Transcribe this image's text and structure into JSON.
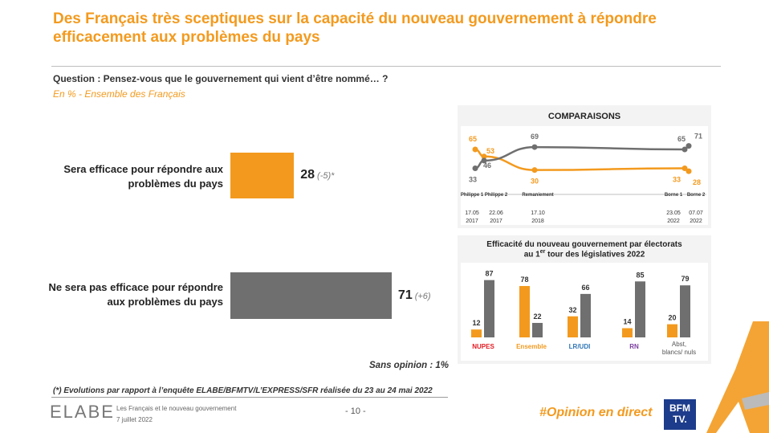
{
  "title": "Des Français très sceptiques sur la capacité du nouveau gouvernement à répondre efficacement aux problèmes du pays",
  "question": "Question : Pensez-vous que le gouvernement qui vient d’être nommé… ?",
  "subquestion": "En % - Ensemble des Français",
  "no_opinion": "Sans opinion : 1%",
  "footnote": "(*) Evolutions par rapport à l’enquête ELABE/BFMTV/L’EXPRESS/SFR réalisée du 23 au 24 mai 2022",
  "footer": {
    "logo": "ELABE",
    "study_title": "Les Français et le nouveau gouvernement",
    "study_date": "7 juillet 2022",
    "page": "- 10 -",
    "hashtag": "#Opinion en direct",
    "bfm_top": "BFM",
    "bfm_bottom": "TV."
  },
  "colors": {
    "orange": "#f39a1e",
    "grey": "#6f6f6f",
    "purple": "#7b3fa0",
    "blue": "#2e75b6",
    "red": "#e31b23"
  },
  "chart_data": [
    {
      "type": "bar",
      "orientation": "horizontal",
      "categories": [
        "Sera efficace pour répondre aux problèmes du pays",
        "Ne sera pas efficace pour répondre aux problèmes du pays"
      ],
      "values": [
        28,
        71
      ],
      "evolutions": [
        "(-5)*",
        "(+6)"
      ],
      "xlim": [
        0,
        100
      ]
    },
    {
      "type": "line",
      "title": "COMPARAISONS",
      "x_labels": [
        {
          "name": "Philippe 1",
          "date": "17.05 2017"
        },
        {
          "name": "Philippe 2",
          "date": "22.06 2017"
        },
        {
          "name": "Remaniement",
          "date": "17.10 2018"
        },
        {
          "name": "Borne 1",
          "date": "23.05 2022"
        },
        {
          "name": "Borne 2",
          "date": "07.07 2022"
        }
      ],
      "series": [
        {
          "name": "Sera efficace",
          "color": "orange",
          "values": [
            65,
            53,
            30,
            33,
            28
          ]
        },
        {
          "name": "Ne sera pas efficace",
          "color": "grey",
          "values": [
            33,
            46,
            69,
            65,
            71
          ]
        }
      ],
      "ylim": [
        20,
        80
      ]
    },
    {
      "type": "bar",
      "title": "Efficacité du nouveau gouvernement par électorats",
      "subtitle_pre": "au 1",
      "subtitle_sup": "er",
      "subtitle_post": " tour des législatives 2022",
      "categories": [
        "NUPES",
        "Ensemble",
        "LR/UDI",
        "RN",
        "Abst, blancs/ nuls"
      ],
      "category_colors": [
        "red",
        "orange",
        "blue",
        "purple",
        "grey"
      ],
      "series": [
        {
          "name": "Sera efficace",
          "color": "orange",
          "values": [
            12,
            78,
            32,
            14,
            20
          ]
        },
        {
          "name": "Ne sera pas efficace",
          "color": "grey",
          "values": [
            87,
            22,
            66,
            85,
            79
          ]
        }
      ],
      "ylim": [
        0,
        100
      ]
    }
  ]
}
